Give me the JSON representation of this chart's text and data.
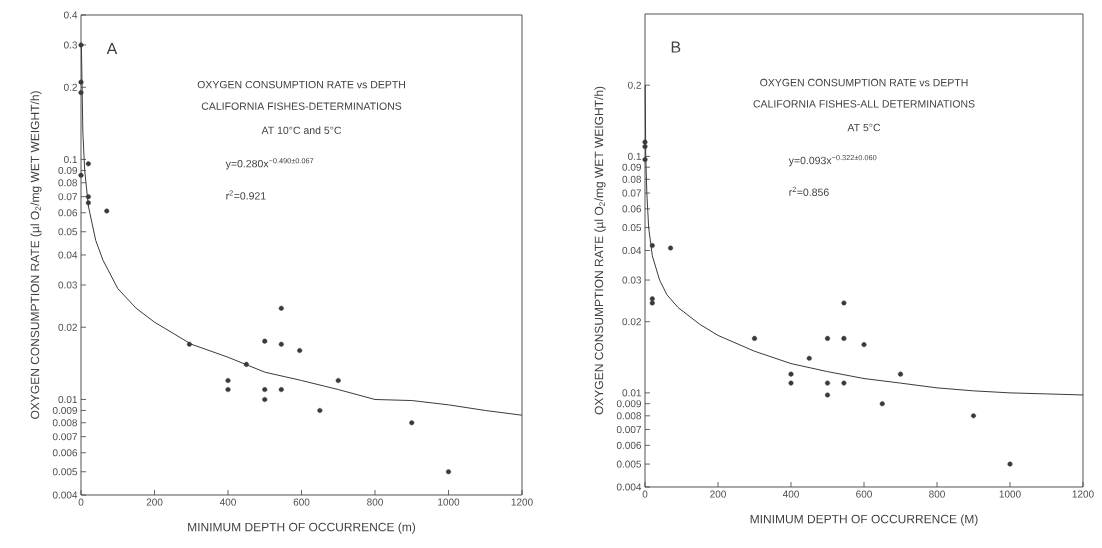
{
  "chart_data": [
    {
      "type": "scatter",
      "title": "OXYGEN CONSUMPTION RATE vs DEPTH",
      "xlabel": "MINIMUM DEPTH OF OCCURRENCE (m)",
      "ylabel": "OXYGEN CONSUMPTION RATE (µl O$_{2}$/mg WET WEIGHT/h)",
      "log": "y",
      "xlim": [
        0,
        1200
      ],
      "xticks": [
        0,
        200,
        400,
        600,
        800,
        1000,
        1200
      ],
      "ylim": [
        0.004,
        0.4
      ],
      "yticks": [
        0.004,
        0.005,
        0.006,
        0.007,
        0.008,
        0.009,
        0.01,
        0.02,
        0.03,
        0.04,
        0.05,
        0.06,
        0.07,
        0.08,
        0.09,
        0.1,
        0.2,
        0.3,
        0.4
      ],
      "annotations": [
        "A",
        "CALIFORNIA FISHES-DETERMINATIONS",
        "AT 10°C and 5°C",
        "y=0.280x$^{−0.490±0.067}$",
        "r$^{2}$=0.921"
      ],
      "series": [
        {
          "marker": "circle",
          "color": "#3a3a3a",
          "x": [
            0,
            0,
            0,
            0,
            20,
            20,
            20,
            70,
            295,
            400,
            400,
            450,
            500,
            500,
            500,
            545,
            545,
            545,
            595,
            650,
            700,
            900,
            1000
          ],
          "values": [
            0.3,
            0.21,
            0.19,
            0.086,
            0.096,
            0.07,
            0.066,
            0.061,
            0.017,
            0.012,
            0.011,
            0.014,
            0.0175,
            0.011,
            0.01,
            0.024,
            0.017,
            0.011,
            0.016,
            0.009,
            0.012,
            0.008,
            0.005
          ]
        },
        {
          "type": "line",
          "marker": "none",
          "color": "#3a3a3a",
          "x": [
            1,
            5,
            10,
            20,
            40,
            60,
            100,
            150,
            200,
            300,
            400,
            500,
            600,
            700,
            800,
            900,
            1000,
            1100,
            1200
          ],
          "values": [
            0.3,
            0.13,
            0.09,
            0.064,
            0.046,
            0.038,
            0.029,
            0.024,
            0.021,
            0.017,
            0.015,
            0.013,
            0.012,
            0.011,
            0.01,
            0.0099,
            0.0095,
            0.009,
            0.0086
          ]
        }
      ]
    },
    {
      "type": "scatter",
      "title": "OXYGEN CONSUMPTION RATE vs DEPTH",
      "xlabel": "MINIMUM DEPTH OF OCCURRENCE (M)",
      "ylabel": "OXYGEN CONSUMPTION RATE (µl O$_{2}$/mg WET WEIGHT/h)",
      "log": "y",
      "xlim": [
        0,
        1200
      ],
      "xticks": [
        0,
        200,
        400,
        600,
        800,
        1000,
        1200
      ],
      "ylim": [
        0.004,
        0.4
      ],
      "yticks": [
        0.004,
        0.005,
        0.006,
        0.007,
        0.008,
        0.009,
        0.01,
        0.02,
        0.03,
        0.04,
        0.05,
        0.06,
        0.07,
        0.08,
        0.09,
        0.1,
        0.2
      ],
      "annotations": [
        "B",
        "CALIFORNIA FISHES-ALL DETERMINATIONS",
        "AT 5°C",
        "y=0.093x$^{−0.322±0.060}$",
        "r$^{2}$=0.856"
      ],
      "series": [
        {
          "marker": "circle",
          "color": "#3a3a3a",
          "x": [
            0,
            0,
            0,
            20,
            20,
            20,
            70,
            300,
            400,
            400,
            450,
            500,
            500,
            500,
            545,
            545,
            545,
            600,
            650,
            700,
            900,
            1000
          ],
          "values": [
            0.115,
            0.11,
            0.097,
            0.042,
            0.025,
            0.024,
            0.041,
            0.017,
            0.012,
            0.011,
            0.014,
            0.017,
            0.011,
            0.0098,
            0.024,
            0.017,
            0.011,
            0.016,
            0.009,
            0.012,
            0.008,
            0.005
          ]
        },
        {
          "type": "line",
          "marker": "none",
          "color": "#3a3a3a",
          "x": [
            0.5,
            2,
            5,
            10,
            20,
            40,
            60,
            90,
            150,
            200,
            300,
            400,
            500,
            600,
            700,
            800,
            900,
            1000,
            1100,
            1200
          ],
          "values": [
            0.2,
            0.1,
            0.07,
            0.05,
            0.038,
            0.03,
            0.026,
            0.023,
            0.0195,
            0.0175,
            0.015,
            0.0133,
            0.0123,
            0.0115,
            0.011,
            0.0105,
            0.0102,
            0.01,
            0.0099,
            0.0098
          ]
        }
      ]
    }
  ]
}
